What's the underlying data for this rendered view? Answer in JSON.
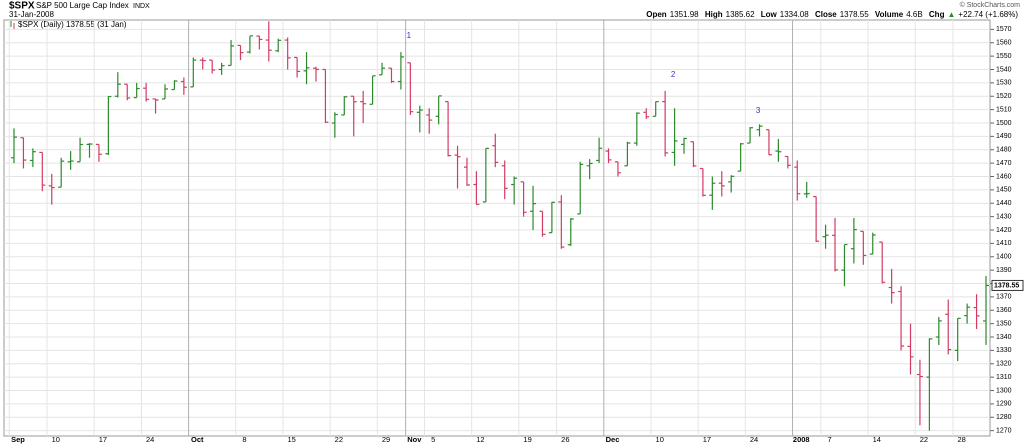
{
  "header": {
    "symbol": "$SPX",
    "name": "S&P 500 Large Cap Index",
    "exchange": "INDX",
    "date": "31-Jan-2008",
    "credit": "© StockCharts.com",
    "open_label": "Open",
    "high_label": "High",
    "low_label": "Low",
    "close_label": "Close",
    "volume_label": "Volume",
    "volume": "4.6B",
    "chg_label": "Chg",
    "chg": "+22.74 (+1.68%)"
  },
  "chart_data": {
    "type": "ohlc",
    "categories": [
      "Sep",
      null,
      null,
      null,
      "10",
      null,
      null,
      null,
      null,
      "17",
      null,
      null,
      null,
      null,
      "24",
      null,
      null,
      null,
      null,
      "Oct",
      null,
      null,
      null,
      null,
      "8",
      null,
      null,
      null,
      null,
      "15",
      null,
      null,
      null,
      null,
      "22",
      null,
      null,
      null,
      null,
      "29",
      null,
      null,
      "Nov",
      null,
      "5",
      null,
      null,
      null,
      null,
      "12",
      null,
      null,
      null,
      null,
      "19",
      null,
      null,
      null,
      "26",
      null,
      null,
      null,
      null,
      "Dec",
      null,
      null,
      null,
      null,
      "10",
      null,
      null,
      null,
      null,
      "17",
      null,
      null,
      null,
      null,
      "24",
      null,
      null,
      null,
      null,
      "2008",
      null,
      null,
      "7",
      null,
      null,
      null,
      null,
      "14",
      null,
      null,
      null,
      null,
      "22",
      null,
      null,
      null,
      "28",
      null,
      null,
      null
    ],
    "series": [
      {
        "name": "$SPX (Daily) 1378.55 (31 Jan)",
        "up_color": "#2b8a2b",
        "down_color": "#d23c64",
        "open": [
          1474,
          1489,
          1472,
          1478,
          1453,
          1452,
          1471,
          1471,
          1484,
          1484,
          1477,
          1520,
          1529,
          1519,
          1526,
          1518,
          1518,
          1525,
          1531,
          1527,
          1547,
          1547,
          1540,
          1543,
          1558,
          1553,
          1565,
          1562,
          1554,
          1562,
          1549,
          1539,
          1541,
          1540,
          1500,
          1506,
          1520,
          1516,
          1514,
          1536,
          1541,
          1531,
          1545,
          1508,
          1506,
          1505,
          1516,
          1476,
          1467,
          1454,
          1441,
          1483,
          1468,
          1454,
          1456,
          1434,
          1434,
          1418,
          1441,
          1409,
          1432,
          1468,
          1472,
          1479,
          1471,
          1468,
          1485,
          1508,
          1505,
          1516,
          1478,
          1484,
          1486,
          1466,
          1446,
          1455,
          1456,
          1464,
          1485,
          1495,
          1495,
          1479,
          1475,
          1467,
          1447,
          1445,
          1415,
          1416,
          1390,
          1406,
          1419,
          1402,
          1411,
          1377,
          1374,
          1333,
          1312,
          1310,
          1340,
          1357,
          1330,
          1356,
          1362,
          1351.98
        ],
        "high": [
          1496,
          1489,
          1481,
          1478,
          1462,
          1474,
          1479,
          1489,
          1485,
          1484,
          1520,
          1538,
          1529,
          1530,
          1530,
          1518,
          1529,
          1532,
          1534,
          1549,
          1549,
          1547,
          1545,
          1562,
          1558,
          1565,
          1565,
          1576,
          1563,
          1564,
          1549,
          1553,
          1542,
          1540,
          1508,
          1520,
          1520,
          1524,
          1535,
          1545,
          1541,
          1553,
          1545,
          1513,
          1511,
          1520,
          1516,
          1483,
          1474,
          1464,
          1481,
          1492,
          1472,
          1460,
          1456,
          1453,
          1434,
          1441,
          1446,
          1429,
          1471,
          1473,
          1489,
          1481,
          1471,
          1486,
          1508,
          1511,
          1516,
          1524,
          1511,
          1489,
          1486,
          1466,
          1460,
          1464,
          1461,
          1485,
          1497,
          1499,
          1495,
          1488,
          1475,
          1472,
          1456,
          1445,
          1424,
          1429,
          1409,
          1429,
          1419,
          1418,
          1411,
          1391,
          1378,
          1350,
          1323,
          1339,
          1355,
          1368,
          1354,
          1365,
          1372,
          1385.62
        ],
        "low": [
          1470,
          1466,
          1467,
          1449,
          1439,
          1452,
          1465,
          1471,
          1474,
          1471,
          1476,
          1519,
          1517,
          1519,
          1516,
          1507,
          1518,
          1525,
          1521,
          1527,
          1540,
          1537,
          1536,
          1543,
          1547,
          1552,
          1555,
          1546,
          1553,
          1540,
          1534,
          1529,
          1531,
          1500,
          1489,
          1506,
          1490,
          1500,
          1514,
          1536,
          1530,
          1525,
          1506,
          1493,
          1492,
          1499,
          1475,
          1451,
          1453,
          1439,
          1441,
          1467,
          1443,
          1439,
          1430,
          1420,
          1415,
          1418,
          1406,
          1408,
          1432,
          1458,
          1470,
          1470,
          1460,
          1468,
          1483,
          1503,
          1505,
          1475,
          1468,
          1477,
          1467,
          1445,
          1435,
          1445,
          1448,
          1464,
          1485,
          1490,
          1476,
          1471,
          1466,
          1442,
          1444,
          1411,
          1406,
          1389,
          1378,
          1395,
          1394,
          1402,
          1380,
          1365,
          1330,
          1312,
          1274,
          1270,
          1334,
          1327,
          1322,
          1350,
          1346,
          1334.08
        ],
        "close": [
          1489.42,
          1472.29,
          1478.55,
          1453.55,
          1451.7,
          1471.49,
          1471.56,
          1483.95,
          1484.25,
          1476.65,
          1519.78,
          1529.03,
          1518.75,
          1525.75,
          1517.73,
          1517.21,
          1525.42,
          1531.38,
          1526.75,
          1547.04,
          1546.63,
          1539.59,
          1542.84,
          1557.59,
          1552.58,
          1565.15,
          1562.47,
          1554.41,
          1561.8,
          1548.71,
          1538.53,
          1541.24,
          1540.08,
          1500.63,
          1506.33,
          1519.59,
          1515.88,
          1514.4,
          1535.28,
          1540.98,
          1531.02,
          1549.38,
          1508.44,
          1509.65,
          1502.17,
          1520.27,
          1475.62,
          1474.77,
          1453.7,
          1439.18,
          1481.05,
          1470.58,
          1451.15,
          1458.74,
          1433.27,
          1439.7,
          1416.77,
          1440.7,
          1407.22,
          1428.23,
          1469.02,
          1469.72,
          1481.14,
          1472.42,
          1462.79,
          1485.01,
          1507.34,
          1504.66,
          1515.96,
          1477.65,
          1486.59,
          1488.41,
          1467.95,
          1445.9,
          1454.98,
          1453,
          1460.12,
          1484.46,
          1496.45,
          1497.66,
          1476.27,
          1478.49,
          1468.36,
          1447.16,
          1447.16,
          1411.63,
          1416.18,
          1390.19,
          1409.13,
          1420.33,
          1401.02,
          1416.25,
          1380.95,
          1373.2,
          1333.25,
          1325.19,
          1310.5,
          1338.6,
          1352.07,
          1330.61,
          1353.97,
          1362.3,
          1355.81,
          1378.55
        ]
      }
    ],
    "annotations": [
      "1",
      "2",
      "3"
    ],
    "annotation_color": "#3333cc",
    "ylim": [
      1266,
      1577
    ],
    "yticks": [
      1270,
      1280,
      1290,
      1300,
      1310,
      1320,
      1330,
      1340,
      1350,
      1360,
      1370,
      1380,
      1390,
      1400,
      1410,
      1420,
      1430,
      1440,
      1450,
      1460,
      1470,
      1480,
      1490,
      1500,
      1510,
      1520,
      1530,
      1540,
      1550,
      1560,
      1570
    ],
    "grid": true
  }
}
